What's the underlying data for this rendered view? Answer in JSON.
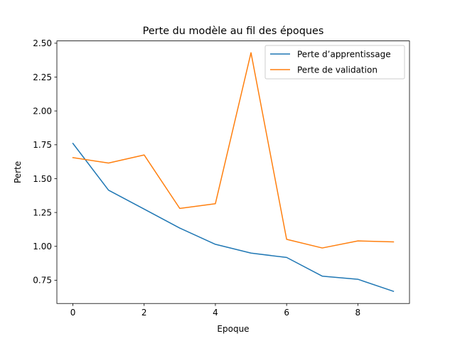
{
  "chart_data": {
    "type": "line",
    "title": "Perte du modèle au fil des époques",
    "xlabel": "Epoque",
    "ylabel": "Perte",
    "xlim": [
      -0.45,
      9.45
    ],
    "ylim": [
      0.578,
      2.517
    ],
    "x_ticks": [
      0,
      2,
      4,
      6,
      8
    ],
    "y_ticks": [
      0.75,
      1.0,
      1.25,
      1.5,
      1.75,
      2.0,
      2.25,
      2.5
    ],
    "y_tick_labels": [
      "0.75",
      "1.00",
      "1.25",
      "1.50",
      "1.75",
      "2.00",
      "2.25",
      "2.50"
    ],
    "x": [
      0,
      1,
      2,
      3,
      4,
      5,
      6,
      7,
      8,
      9
    ],
    "series": [
      {
        "name": "Perte d’apprentissage",
        "color": "#1f77b4",
        "values": [
          1.76,
          1.415,
          1.275,
          1.135,
          1.015,
          0.95,
          0.918,
          0.78,
          0.757,
          0.668
        ]
      },
      {
        "name": "Perte de validation",
        "color": "#ff7f0e",
        "values": [
          1.655,
          1.615,
          1.675,
          1.28,
          1.315,
          2.43,
          1.052,
          0.988,
          1.04,
          1.033
        ]
      }
    ],
    "legend_position": "top-right",
    "grid": false
  }
}
